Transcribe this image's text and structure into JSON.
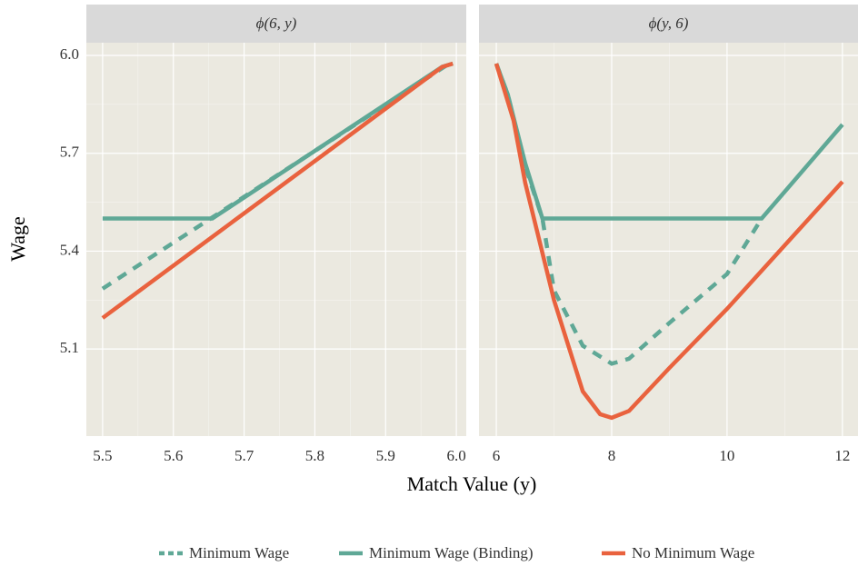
{
  "x_label": "Match Value (y)",
  "y_label": "Wage",
  "ylim": [
    4.833,
    6.039
  ],
  "yticks": [
    5.1,
    5.4,
    5.7,
    {
      "value": 6,
      "label": "6.0"
    }
  ],
  "chart_data": [
    {
      "type": "line",
      "title": "ϕ(6, y)",
      "xlim": [
        5.477,
        6.014
      ],
      "xticks": [
        5.5,
        5.6,
        5.7,
        5.8,
        5.9,
        {
          "value": 6,
          "label": "6.0"
        }
      ],
      "series": [
        {
          "name": "Minimum Wage",
          "color": "#5fa896",
          "dashed": true,
          "x": [
            5.5,
            5.99
          ],
          "values": [
            5.285,
            5.975
          ]
        },
        {
          "name": "Minimum Wage (Binding)",
          "color": "#5fa896",
          "dashed": false,
          "x": [
            5.5,
            5.655,
            5.98,
            5.995
          ],
          "values": [
            5.5,
            5.5,
            5.965,
            5.975
          ]
        },
        {
          "name": "No Minimum Wage",
          "color": "#e9623e",
          "dashed": false,
          "x": [
            5.5,
            5.98,
            5.995
          ],
          "values": [
            5.195,
            5.965,
            5.975
          ]
        }
      ]
    },
    {
      "type": "line",
      "title": "ϕ(y, 6)",
      "xlim": [
        5.7,
        12.27
      ],
      "xticks": [
        6,
        8,
        10,
        12
      ],
      "series": [
        {
          "color": "#5fa896",
          "dashed": true,
          "x": [
            6,
            6.2,
            6.5,
            6.8,
            7,
            7.5,
            8,
            8.3,
            9,
            10,
            10.6
          ],
          "values": [
            5.975,
            5.88,
            5.66,
            5.5,
            5.28,
            5.11,
            5.055,
            5.07,
            5.18,
            5.33,
            5.5
          ]
        },
        {
          "color": "#5fa896",
          "dashed": false,
          "x": [
            6,
            6.2,
            6.5,
            6.8,
            10.6,
            12
          ],
          "values": [
            5.975,
            5.88,
            5.67,
            5.5,
            5.5,
            5.788
          ]
        },
        {
          "color": "#e9623e",
          "dashed": false,
          "x": [
            6,
            6.3,
            6.5,
            7,
            7.5,
            7.8,
            8,
            8.3,
            9,
            10,
            11,
            12
          ],
          "values": [
            5.975,
            5.8,
            5.61,
            5.25,
            4.97,
            4.9,
            4.889,
            4.91,
            5.042,
            5.223,
            5.418,
            5.613
          ]
        }
      ]
    }
  ]
}
